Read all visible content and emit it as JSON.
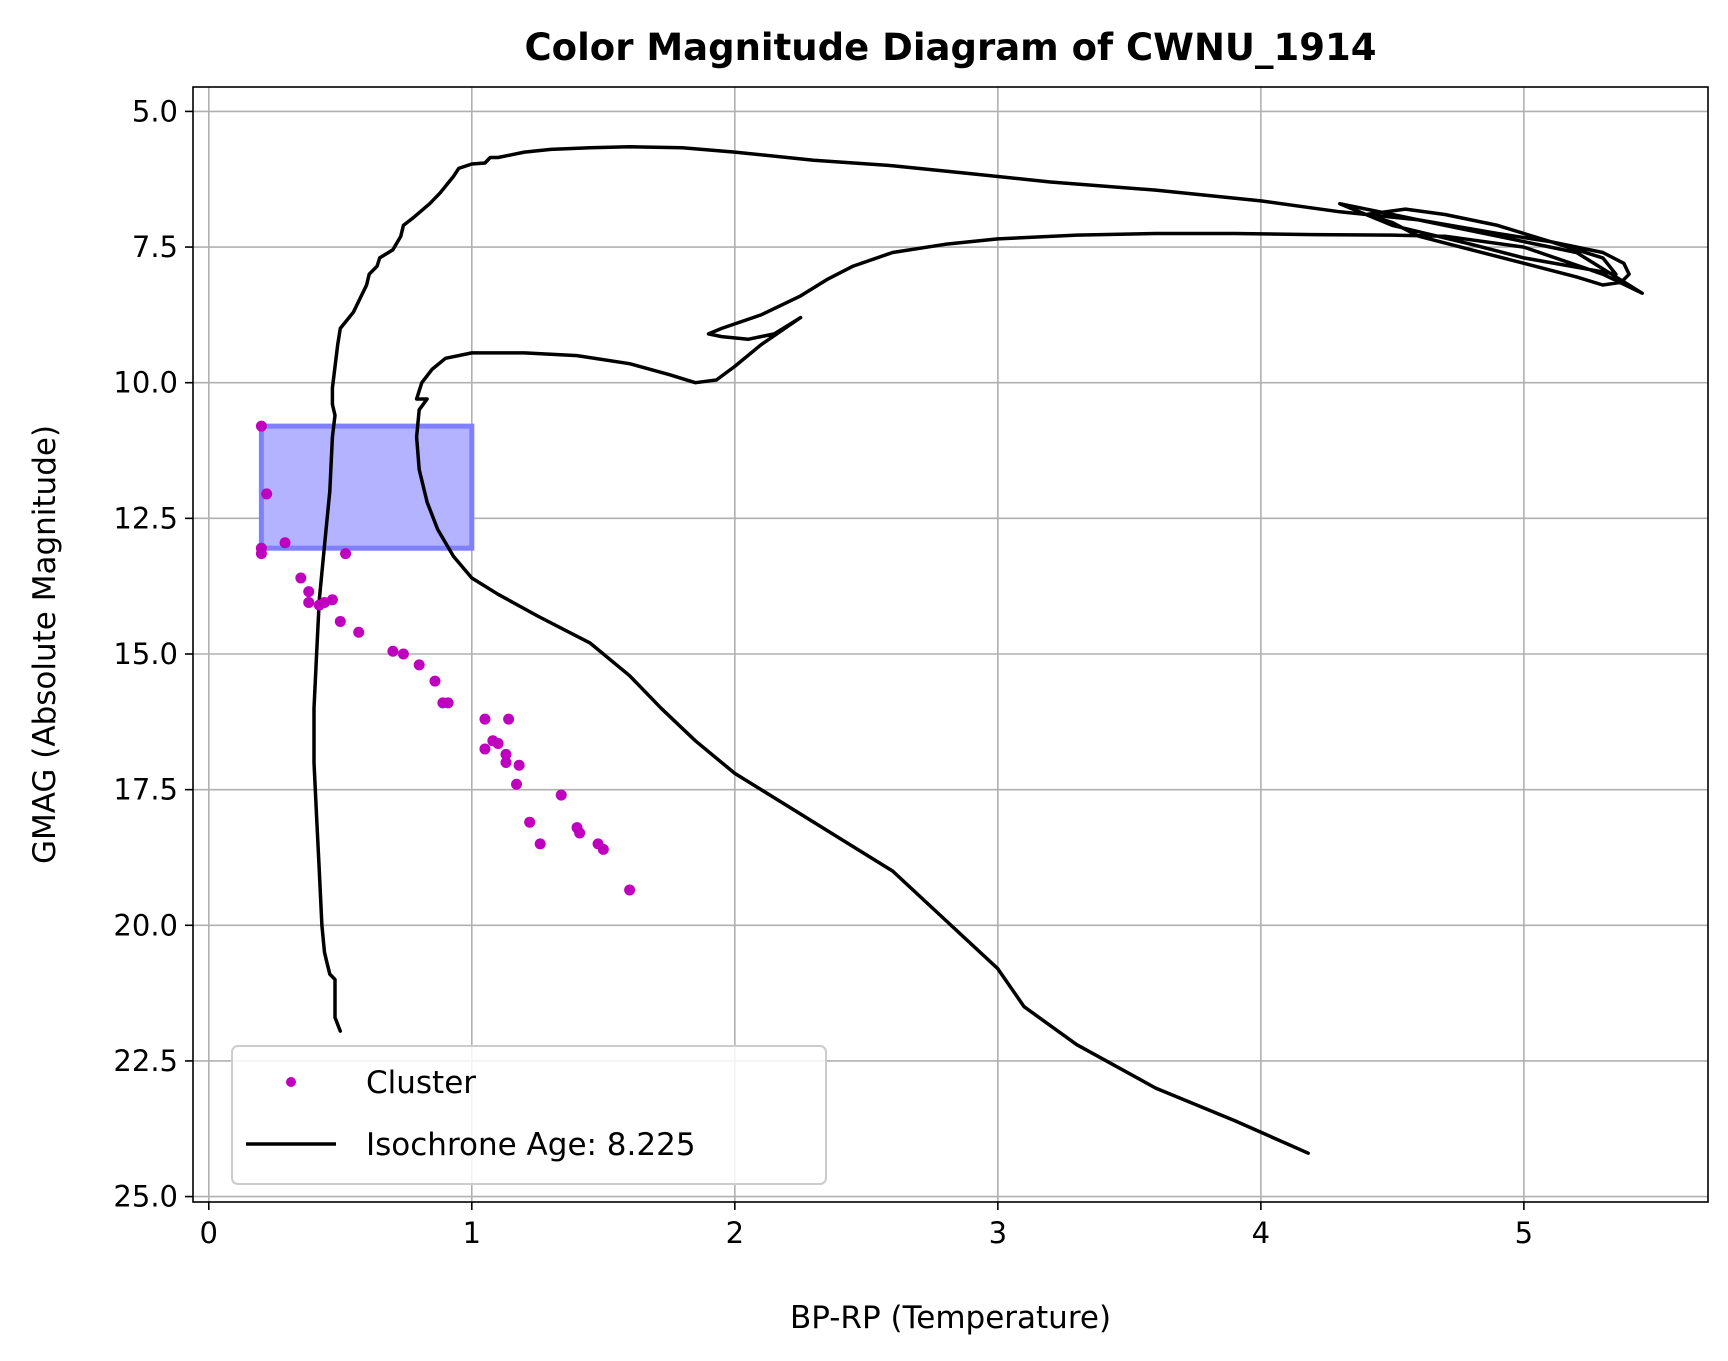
{
  "chart_data": {
    "type": "scatter",
    "title": "Color Magnitude Diagram of CWNU_1914",
    "xlabel": "BP-RP (Temperature)",
    "ylabel": "GMAG (Absolute Magnitude)",
    "xlim": [
      -0.06,
      5.7
    ],
    "ylim": [
      25.1,
      4.55
    ],
    "y_inverted": true,
    "grid": true,
    "legend_position": "lower-left",
    "x_ticks": [
      0,
      1,
      2,
      3,
      4,
      5
    ],
    "x_tick_labels": [
      "0",
      "1",
      "2",
      "3",
      "4",
      "5"
    ],
    "y_ticks": [
      5.0,
      7.5,
      10.0,
      12.5,
      15.0,
      17.5,
      20.0,
      22.5,
      25.0
    ],
    "y_tick_labels": [
      "5.0",
      "7.5",
      "10.0",
      "12.5",
      "15.0",
      "17.5",
      "20.0",
      "22.5",
      "25.0"
    ],
    "colors": {
      "cluster": "#bf00bf",
      "isochrone": "#000000",
      "highlight_fill": "#b3b3ff",
      "highlight_edge": "#7f7fff",
      "grid": "#b0b0b0"
    },
    "series": [
      {
        "name": "Cluster",
        "kind": "scatter",
        "points": [
          [
            0.2,
            10.8
          ],
          [
            0.22,
            12.05
          ],
          [
            0.2,
            13.05
          ],
          [
            0.2,
            13.15
          ],
          [
            0.29,
            12.95
          ],
          [
            0.52,
            13.15
          ],
          [
            0.35,
            13.6
          ],
          [
            0.38,
            13.85
          ],
          [
            0.38,
            14.05
          ],
          [
            0.42,
            14.1
          ],
          [
            0.44,
            14.05
          ],
          [
            0.47,
            14.0
          ],
          [
            0.5,
            14.4
          ],
          [
            0.57,
            14.6
          ],
          [
            0.7,
            14.95
          ],
          [
            0.74,
            15.0
          ],
          [
            0.8,
            15.2
          ],
          [
            0.86,
            15.5
          ],
          [
            0.89,
            15.9
          ],
          [
            0.91,
            15.9
          ],
          [
            1.05,
            16.2
          ],
          [
            1.14,
            16.2
          ],
          [
            1.05,
            16.75
          ],
          [
            1.08,
            16.6
          ],
          [
            1.1,
            16.65
          ],
          [
            1.13,
            16.85
          ],
          [
            1.13,
            17.0
          ],
          [
            1.18,
            17.05
          ],
          [
            1.17,
            17.4
          ],
          [
            1.34,
            17.6
          ],
          [
            1.22,
            18.1
          ],
          [
            1.26,
            18.5
          ],
          [
            1.4,
            18.2
          ],
          [
            1.41,
            18.3
          ],
          [
            1.48,
            18.5
          ],
          [
            1.5,
            18.6
          ],
          [
            1.6,
            19.35
          ]
        ]
      },
      {
        "name": "Isochrone Age: 8.225",
        "kind": "line",
        "points": [
          [
            0.5,
            21.95
          ],
          [
            0.48,
            21.7
          ],
          [
            0.48,
            21.2
          ],
          [
            0.48,
            21.0
          ],
          [
            0.46,
            20.9
          ],
          [
            0.45,
            20.7
          ],
          [
            0.44,
            20.5
          ],
          [
            0.43,
            20.0
          ],
          [
            0.42,
            19.0
          ],
          [
            0.41,
            18.0
          ],
          [
            0.4,
            17.0
          ],
          [
            0.4,
            16.0
          ],
          [
            0.41,
            15.0
          ],
          [
            0.42,
            14.0
          ],
          [
            0.44,
            13.0
          ],
          [
            0.46,
            12.0
          ],
          [
            0.47,
            11.0
          ],
          [
            0.48,
            10.6
          ],
          [
            0.47,
            10.4
          ],
          [
            0.47,
            10.1
          ],
          [
            0.49,
            9.3
          ],
          [
            0.5,
            9.0
          ],
          [
            0.55,
            8.7
          ],
          [
            0.58,
            8.4
          ],
          [
            0.6,
            8.2
          ],
          [
            0.61,
            8.0
          ],
          [
            0.64,
            7.85
          ],
          [
            0.65,
            7.7
          ],
          [
            0.7,
            7.55
          ],
          [
            0.73,
            7.3
          ],
          [
            0.74,
            7.1
          ],
          [
            0.78,
            6.95
          ],
          [
            0.84,
            6.7
          ],
          [
            0.88,
            6.5
          ],
          [
            0.93,
            6.2
          ],
          [
            0.95,
            6.05
          ],
          [
            1.0,
            5.97
          ],
          [
            1.05,
            5.95
          ],
          [
            1.07,
            5.85
          ],
          [
            1.1,
            5.85
          ],
          [
            1.15,
            5.8
          ],
          [
            1.2,
            5.75
          ],
          [
            1.3,
            5.7
          ],
          [
            1.45,
            5.67
          ],
          [
            1.6,
            5.65
          ],
          [
            1.8,
            5.67
          ],
          [
            2.0,
            5.75
          ],
          [
            2.3,
            5.9
          ],
          [
            2.6,
            6.0
          ],
          [
            2.9,
            6.15
          ],
          [
            3.2,
            6.3
          ],
          [
            3.6,
            6.45
          ],
          [
            4.0,
            6.65
          ],
          [
            4.3,
            6.85
          ],
          [
            4.6,
            7.0
          ],
          [
            4.9,
            7.25
          ],
          [
            5.1,
            7.4
          ],
          [
            5.3,
            7.6
          ],
          [
            5.38,
            7.8
          ],
          [
            5.4,
            8.0
          ],
          [
            5.37,
            8.15
          ],
          [
            5.3,
            8.2
          ],
          [
            5.2,
            8.05
          ],
          [
            5.0,
            7.8
          ],
          [
            4.8,
            7.55
          ],
          [
            4.6,
            7.3
          ],
          [
            4.5,
            7.05
          ],
          [
            4.4,
            6.9
          ],
          [
            4.55,
            6.8
          ],
          [
            4.7,
            6.9
          ],
          [
            4.9,
            7.1
          ],
          [
            5.1,
            7.4
          ],
          [
            5.3,
            7.7
          ],
          [
            5.35,
            8.0
          ],
          [
            5.0,
            7.7
          ],
          [
            4.8,
            7.45
          ],
          [
            4.5,
            7.1
          ],
          [
            4.3,
            6.7
          ],
          [
            4.5,
            6.9
          ],
          [
            4.7,
            7.1
          ],
          [
            4.9,
            7.3
          ],
          [
            5.2,
            7.6
          ],
          [
            5.45,
            8.35
          ],
          [
            5.3,
            8.0
          ],
          [
            5.0,
            7.5
          ],
          [
            4.7,
            7.3
          ],
          [
            4.5,
            7.28
          ],
          [
            4.2,
            7.27
          ],
          [
            3.9,
            7.25
          ],
          [
            3.6,
            7.25
          ],
          [
            3.3,
            7.28
          ],
          [
            3.0,
            7.35
          ],
          [
            2.8,
            7.45
          ],
          [
            2.6,
            7.6
          ],
          [
            2.45,
            7.85
          ],
          [
            2.35,
            8.1
          ],
          [
            2.25,
            8.4
          ],
          [
            2.1,
            8.75
          ],
          [
            1.95,
            9.0
          ],
          [
            1.9,
            9.1
          ],
          [
            1.95,
            9.15
          ],
          [
            2.05,
            9.2
          ],
          [
            2.15,
            9.1
          ],
          [
            2.25,
            8.8
          ],
          [
            2.1,
            9.3
          ],
          [
            2.0,
            9.7
          ],
          [
            1.93,
            9.95
          ],
          [
            1.85,
            10.0
          ],
          [
            1.75,
            9.85
          ],
          [
            1.6,
            9.65
          ],
          [
            1.4,
            9.5
          ],
          [
            1.2,
            9.45
          ],
          [
            1.0,
            9.45
          ],
          [
            0.9,
            9.55
          ],
          [
            0.85,
            9.75
          ],
          [
            0.81,
            10.0
          ],
          [
            0.79,
            10.3
          ],
          [
            0.83,
            10.3
          ],
          [
            0.8,
            10.5
          ],
          [
            0.79,
            11.0
          ],
          [
            0.8,
            11.6
          ],
          [
            0.83,
            12.2
          ],
          [
            0.87,
            12.7
          ],
          [
            0.93,
            13.2
          ],
          [
            1.0,
            13.6
          ],
          [
            1.1,
            13.9
          ],
          [
            1.25,
            14.3
          ],
          [
            1.45,
            14.8
          ],
          [
            1.6,
            15.4
          ],
          [
            1.72,
            16.0
          ],
          [
            1.85,
            16.6
          ],
          [
            2.0,
            17.2
          ],
          [
            2.2,
            17.8
          ],
          [
            2.4,
            18.4
          ],
          [
            2.6,
            19.0
          ],
          [
            2.8,
            19.9
          ],
          [
            3.0,
            20.8
          ],
          [
            3.1,
            21.5
          ],
          [
            3.3,
            22.2
          ],
          [
            3.6,
            23.0
          ],
          [
            3.9,
            23.6
          ],
          [
            4.18,
            24.2
          ]
        ]
      },
      {
        "name": "",
        "kind": "region",
        "x_range": [
          0.2,
          1.0
        ],
        "y_range": [
          10.8,
          13.05
        ]
      }
    ]
  },
  "legend": {
    "cluster_label": "Cluster",
    "isochrone_label": "Isochrone Age: 8.225"
  }
}
